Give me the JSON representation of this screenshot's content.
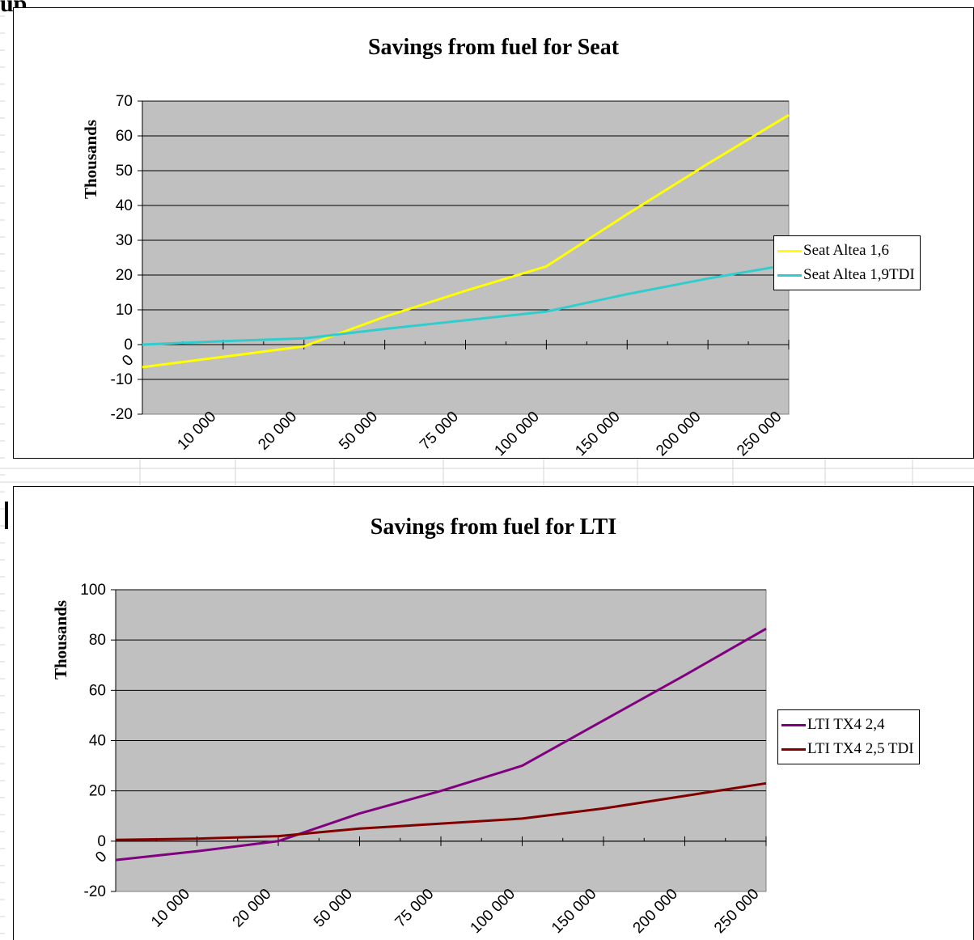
{
  "page": {
    "clipped_heading": "up"
  },
  "chart_data": [
    {
      "type": "line",
      "title": "Savings from fuel for Seat",
      "ylabel": "Thousands",
      "xlabel": "",
      "categories": [
        "0",
        "10 000",
        "20 000",
        "50 000",
        "75 000",
        "100 000",
        "150 000",
        "200 000",
        "250 000"
      ],
      "ylim": [
        -20,
        70
      ],
      "yticks": [
        -20,
        -10,
        0,
        10,
        20,
        30,
        40,
        50,
        60,
        70
      ],
      "plot_background": "#c0c0c0",
      "grid": true,
      "legend": "right",
      "series": [
        {
          "name": "Seat Altea 1,6",
          "color": "#ffff00",
          "values": [
            -6.5,
            -3.5,
            -0.5,
            8,
            15.5,
            22.5,
            37.5,
            52,
            66
          ]
        },
        {
          "name": "Seat Altea 1,9TDI",
          "color": "#33cccc",
          "values": [
            0,
            1,
            1.8,
            4.5,
            7,
            9.5,
            14.5,
            19,
            23
          ]
        }
      ]
    },
    {
      "type": "line",
      "title": "Savings from fuel for LTI",
      "ylabel": "Thousands",
      "xlabel": "",
      "categories": [
        "0",
        "10 000",
        "20 000",
        "50 000",
        "75 000",
        "100 000",
        "150 000",
        "200 000",
        "250 000"
      ],
      "ylim": [
        -20,
        100
      ],
      "yticks": [
        -20,
        0,
        20,
        40,
        60,
        80,
        100
      ],
      "plot_background": "#c0c0c0",
      "grid": true,
      "legend": "right",
      "series": [
        {
          "name": "LTI TX4 2,4",
          "color": "#800080",
          "values": [
            -7.5,
            -4,
            0,
            11,
            20,
            30,
            48,
            66,
            84.5
          ]
        },
        {
          "name": "LTI TX4 2,5 TDI",
          "color": "#800000",
          "values": [
            0.5,
            1,
            2,
            5,
            7,
            9,
            13,
            18,
            23
          ]
        }
      ]
    }
  ]
}
